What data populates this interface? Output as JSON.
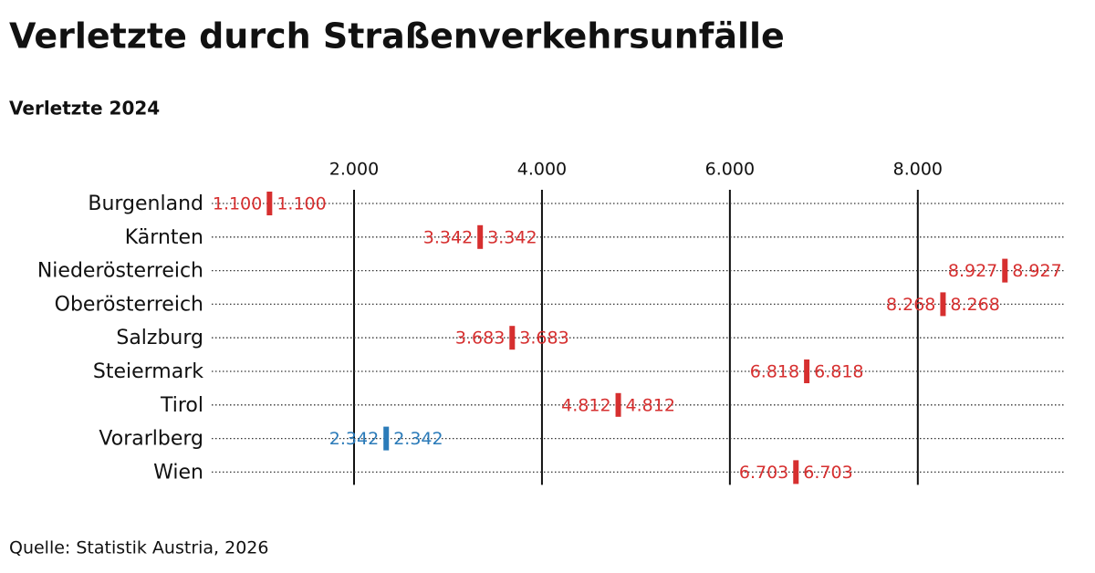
{
  "chart_data": {
    "type": "dot",
    "title": "Verletzte durch Straßenverkehrsunfälle",
    "subtitle": "Verletzte 2024",
    "source": "Quelle: Statistik Austria, 2026",
    "categories": [
      "Burgenland",
      "Kärnten",
      "Niederösterreich",
      "Oberösterreich",
      "Salzburg",
      "Steiermark",
      "Tirol",
      "Vorarlberg",
      "Wien"
    ],
    "values": [
      1100,
      3342,
      8927,
      8268,
      3683,
      6818,
      4812,
      2342,
      6703
    ],
    "value_labels": [
      "1.100",
      "3.342",
      "8.927",
      "8.268",
      "3.683",
      "6.818",
      "4.812",
      "2.342",
      "6.703"
    ],
    "colors": [
      "#d62f2f",
      "#d62f2f",
      "#d62f2f",
      "#d62f2f",
      "#d62f2f",
      "#d62f2f",
      "#d62f2f",
      "#2b7bb9",
      "#d62f2f"
    ],
    "xlim": [
      485,
      9575
    ],
    "xticks": [
      {
        "value": 2000,
        "label": "2.000"
      },
      {
        "value": 4000,
        "label": "4.000"
      },
      {
        "value": 6000,
        "label": "6.000"
      },
      {
        "value": 8000,
        "label": "8.000"
      }
    ],
    "grid": true
  }
}
